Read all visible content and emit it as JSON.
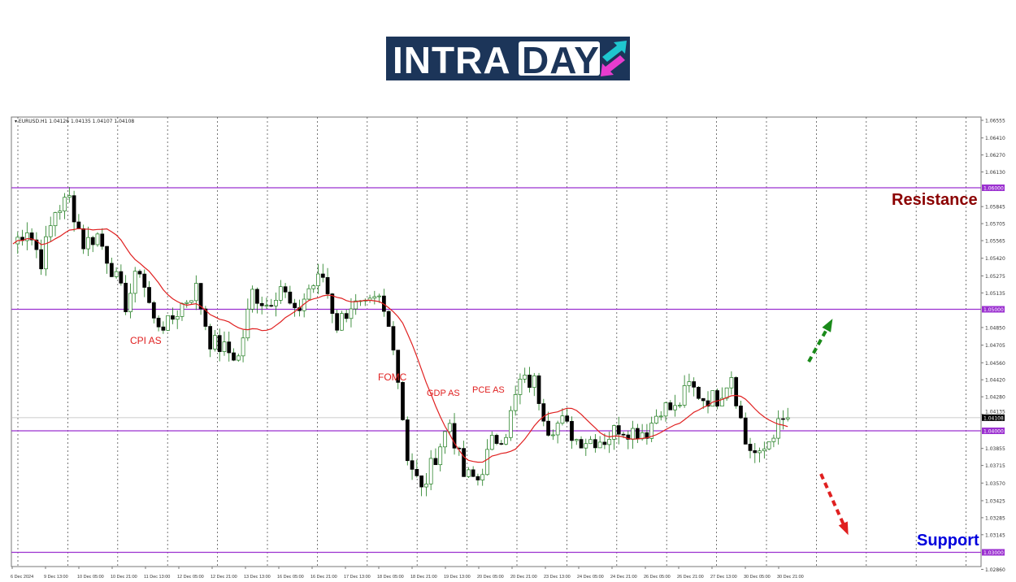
{
  "logo": {
    "part1": "INTRA",
    "part2": "DAY",
    "colors": {
      "bg": "#1c3559",
      "arrow_up": "#1fc6cf",
      "arrow_down": "#e83ccf"
    }
  },
  "chart_data": {
    "type": "candlestick",
    "symbol_header": "EURUSD.H1  1.04126 1.04135 1.04107 1.04108",
    "ylim": [
      1.0286,
      1.06555
    ],
    "y_ticks": [
      "1.06555",
      "1.06410",
      "1.06270",
      "1.06130",
      "1.05845",
      "1.05705",
      "1.05565",
      "1.05420",
      "1.05275",
      "1.05135",
      "1.04850",
      "1.04705",
      "1.04560",
      "1.04420",
      "1.04280",
      "1.04135",
      "1.03855",
      "1.03715",
      "1.03570",
      "1.03425",
      "1.03285",
      "1.03145",
      "1.02860"
    ],
    "levels": [
      {
        "price": "1.06000",
        "label": "1.06000"
      },
      {
        "price": "1.05000",
        "label": "1.05000"
      },
      {
        "price": "1.04000",
        "label": "1.04000"
      },
      {
        "price": "1.03000",
        "label": "1.03000"
      }
    ],
    "current_price": "1.04108",
    "x_ticks": [
      "6 Dec 2024",
      "9 Dec 13:00",
      "10 Dec 05:00",
      "10 Dec 21:00",
      "11 Dec 13:00",
      "12 Dec 05:00",
      "12 Dec 21:00",
      "13 Dec 13:00",
      "16 Dec 05:00",
      "16 Dec 21:00",
      "17 Dec 13:00",
      "18 Dec 05:00",
      "18 Dec 21:00",
      "19 Dec 13:00",
      "20 Dec 05:00",
      "20 Dec 21:00",
      "23 Dec 13:00",
      "24 Dec 05:00",
      "24 Dec 21:00",
      "26 Dec 05:00",
      "26 Dec 21:00",
      "27 Dec 13:00",
      "30 Dec 05:00",
      "30 Dec 21:00"
    ],
    "closes": [
      1.0554,
      1.0567,
      1.054,
      1.0581,
      1.0591,
      1.0554,
      1.0561,
      1.0534,
      1.0504,
      1.0534,
      1.049,
      1.0487,
      1.0504,
      1.0517,
      1.0474,
      1.0467,
      1.046,
      1.0514,
      1.0504,
      1.052,
      1.0494,
      1.0517,
      1.0527,
      1.0487,
      1.0504,
      1.05,
      1.0507,
      1.0474,
      1.038,
      1.035,
      1.038,
      1.0407,
      1.0363,
      1.036,
      1.039,
      1.04,
      1.044,
      1.044,
      1.0403,
      1.0407,
      1.0393,
      1.0393,
      1.0393,
      1.0403,
      1.04,
      1.04,
      1.042,
      1.0417,
      1.0437,
      1.0427,
      1.0427,
      1.0447,
      1.039,
      1.0377,
      1.04,
      1.04108
    ],
    "colors": {
      "candle": "#1a7a1a",
      "ma": "#e02020",
      "level": "#9b30d0",
      "grid": "#555555"
    },
    "annotations": [
      {
        "text": "CPI AS",
        "color": "#e02020"
      },
      {
        "text": "FOMC",
        "color": "#e02020"
      },
      {
        "text": "GDP AS",
        "color": "#e02020"
      },
      {
        "text": "PCE AS",
        "color": "#e02020"
      },
      {
        "text": "Resistance",
        "color": "#8b0000"
      },
      {
        "text": "Support",
        "color": "#0000dd"
      }
    ],
    "arrows": [
      {
        "direction": "up",
        "color": "#1a8a1a"
      },
      {
        "direction": "down",
        "color": "#e02020"
      }
    ]
  }
}
